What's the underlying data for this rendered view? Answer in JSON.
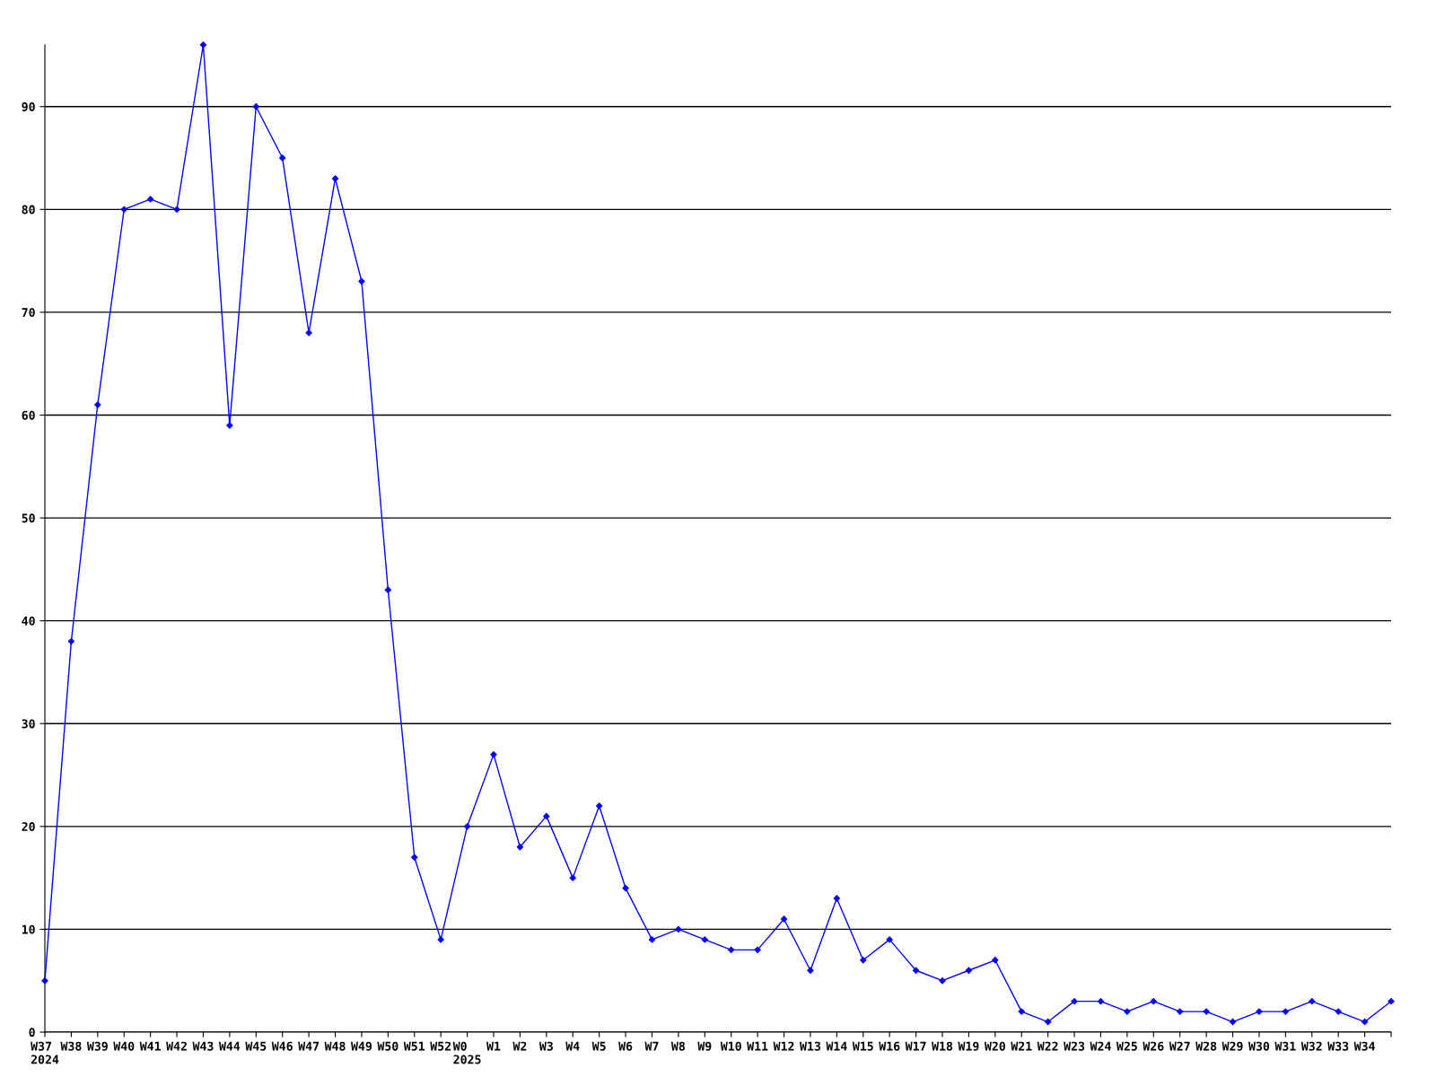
{
  "chart_data": {
    "type": "line",
    "categories": [
      "W37\n2024",
      "W38",
      "W39",
      "W40",
      "W41",
      "W42",
      "W43",
      "W44",
      "W45",
      "W46",
      "W47",
      "W48",
      "W49",
      "W50",
      "W51",
      "W52",
      "W0\n2025",
      "W1",
      "W2",
      "W3",
      "W4",
      "W5",
      "W6",
      "W7",
      "W8",
      "W9",
      "W10",
      "W11",
      "W12",
      "W13",
      "W14",
      "W15",
      "W16",
      "W17",
      "W18",
      "W19",
      "W20",
      "W21",
      "W22",
      "W23",
      "W24",
      "W25",
      "W26",
      "W27",
      "W28",
      "W29",
      "W30",
      "W31",
      "W32",
      "W33",
      "W34",
      null
    ],
    "series": [
      {
        "color": "#0000ff",
        "values": [
          5,
          38,
          61,
          80,
          81,
          80,
          96,
          59,
          90,
          85,
          68,
          83,
          73,
          43,
          17,
          9,
          20,
          27,
          18,
          21,
          15,
          22,
          14,
          9,
          10,
          9,
          8,
          8,
          11,
          6,
          13,
          7,
          9,
          6,
          5,
          6,
          7,
          2,
          1,
          3,
          3,
          2,
          3,
          2,
          2,
          1,
          2,
          2,
          3,
          2,
          1,
          3
        ]
      }
    ],
    "ylim": [
      0,
      96
    ],
    "yticks": [
      0,
      10,
      20,
      30,
      40,
      50,
      60,
      70,
      80,
      90
    ],
    "grid": "y",
    "marker": "diamond",
    "line_style": "solid",
    "legend": false
  }
}
